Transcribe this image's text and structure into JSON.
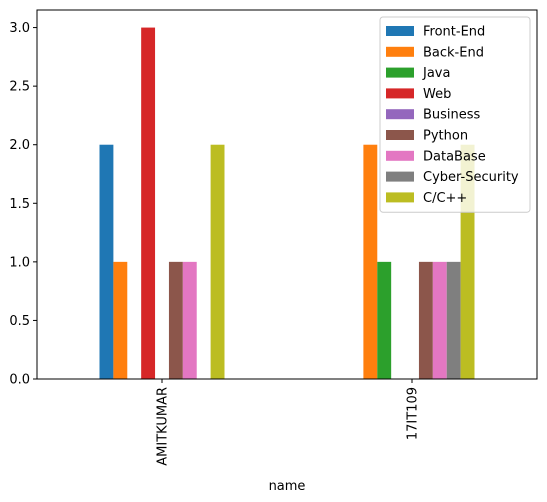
{
  "chart_data": {
    "type": "bar",
    "xlabel": "name",
    "ylabel": "",
    "categories": [
      "AMITKUMAR",
      "17IT109"
    ],
    "ylim": [
      0,
      3.15
    ],
    "yticks": [
      "0.0",
      "0.5",
      "1.0",
      "1.5",
      "2.0",
      "2.5",
      "3.0"
    ],
    "grid": false,
    "legend_position": "top-right",
    "series": [
      {
        "name": "Front-End",
        "color": "#1f77b4",
        "values": [
          2,
          0
        ]
      },
      {
        "name": "Back-End",
        "color": "#ff7f0e",
        "values": [
          1,
          2
        ]
      },
      {
        "name": "Java",
        "color": "#2ca02c",
        "values": [
          0,
          1
        ]
      },
      {
        "name": "Web",
        "color": "#d62728",
        "values": [
          3,
          0
        ]
      },
      {
        "name": "Business",
        "color": "#9467bd",
        "values": [
          0,
          0
        ]
      },
      {
        "name": "Python",
        "color": "#8c564b",
        "values": [
          1,
          1
        ]
      },
      {
        "name": "DataBase",
        "color": "#e377c2",
        "values": [
          1,
          1
        ]
      },
      {
        "name": "Cyber-Security",
        "color": "#7f7f7f",
        "values": [
          0,
          1
        ]
      },
      {
        "name": "C/C++",
        "color": "#bcbd22",
        "values": [
          2,
          2
        ]
      }
    ]
  }
}
